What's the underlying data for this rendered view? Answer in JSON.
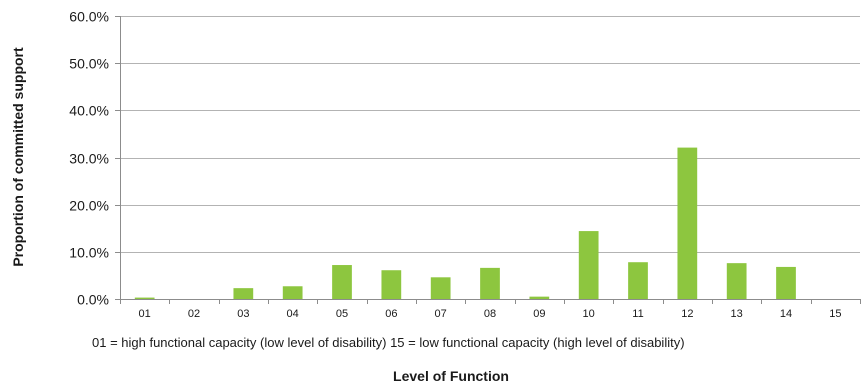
{
  "chart_data": {
    "type": "bar",
    "title": "",
    "xlabel": "Level of Function",
    "ylabel": "Proportion of committed support",
    "note": "01 = high functional capacity (low level of disability)  15 = low functional capacity (high level of disability)",
    "categories": [
      "01",
      "02",
      "03",
      "04",
      "05",
      "06",
      "07",
      "08",
      "09",
      "10",
      "11",
      "12",
      "13",
      "14",
      "15"
    ],
    "values": [
      0.3,
      0.0,
      2.3,
      2.7,
      7.2,
      6.1,
      4.6,
      6.6,
      0.5,
      14.4,
      7.8,
      32.1,
      7.6,
      6.8,
      0.0
    ],
    "ylim": [
      0,
      60
    ],
    "yticks": [
      0,
      10,
      20,
      30,
      40,
      50,
      60
    ],
    "ytick_labels": [
      "0.0%",
      "10.0%",
      "20.0%",
      "30.0%",
      "40.0%",
      "50.0%",
      "60.0%"
    ],
    "grid": true,
    "bar_color": "#8dc63f",
    "grid_color": "#b3b3b3",
    "axis_color": "#8c8c8c"
  }
}
